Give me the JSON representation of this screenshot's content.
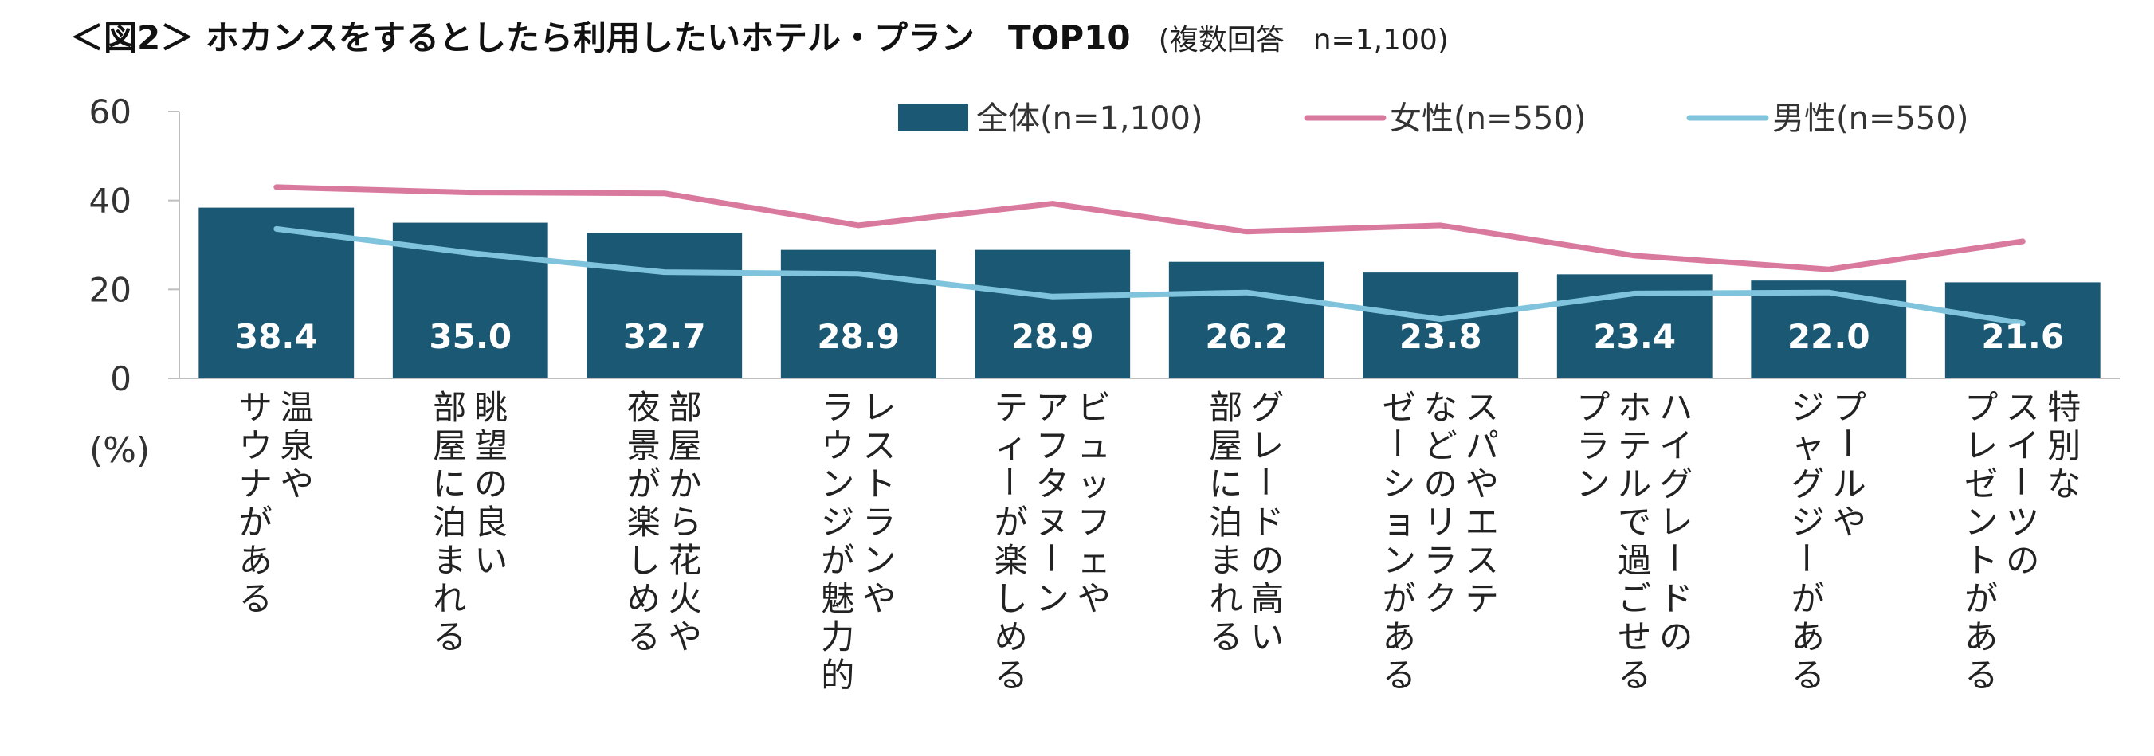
{
  "chart_data": {
    "type": "bar",
    "title": "＜図2＞ ホカンスをするとしたら利用したいホテル・プラン　TOP10",
    "subtitle": "(複数回答　n=1,100)",
    "unit_label": "(%)",
    "ylim": [
      0,
      60
    ],
    "yticks": [
      0,
      20,
      40,
      60
    ],
    "grid": false,
    "legend_position": "top",
    "categories": [
      "温泉や\nサウナがある",
      "眺望の良い\n部屋に泊まれる",
      "部屋から花火や\n夜景が楽しめる",
      "レストランや\nラウンジが魅力的",
      "ビュッフェや\nアフタヌーン\nティーが楽しめる",
      "グレードの高い\n部屋に泊まれる",
      "スパやエステ\nなどのリラク\nゼーションがある",
      "ハイグレードの\nホテルで過ごせる\nプラン",
      "プールや\nジャグジーがある",
      "特別な\nスイーツの\nプレゼントがある"
    ],
    "series": [
      {
        "name": "全体(n=1,100)",
        "type": "bar",
        "color": "#1b5873",
        "values": [
          38.4,
          35.0,
          32.7,
          28.9,
          28.9,
          26.2,
          23.8,
          23.4,
          22.0,
          21.6
        ]
      },
      {
        "name": "女性(n=550)",
        "type": "line",
        "color": "#d9799d",
        "values": [
          43.0,
          41.8,
          41.6,
          34.4,
          39.3,
          33.0,
          34.4,
          27.6,
          24.5,
          30.8
        ]
      },
      {
        "name": "男性(n=550)",
        "type": "line",
        "color": "#7fc4dc",
        "values": [
          33.6,
          28.2,
          23.9,
          23.5,
          18.4,
          19.3,
          13.3,
          19.1,
          19.3,
          12.4
        ]
      }
    ]
  }
}
